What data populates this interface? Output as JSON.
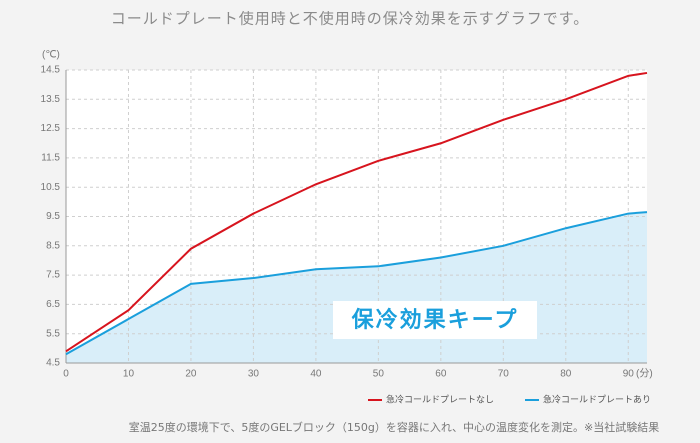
{
  "chart_data": {
    "type": "line",
    "title": "コールドプレート使用時と不使用時の保冷効果を示すグラフです。",
    "ylabel": "(℃)",
    "xlabel": "(分)",
    "x": [
      0,
      10,
      20,
      30,
      40,
      50,
      60,
      70,
      80,
      90,
      93
    ],
    "series": [
      {
        "name": "急冷コールドプレートなし",
        "color": "#d7141e",
        "values": [
          4.9,
          6.3,
          8.4,
          9.6,
          10.6,
          11.4,
          12.0,
          12.8,
          13.5,
          14.3,
          14.4
        ]
      },
      {
        "name": "急冷コールドプレートあり",
        "color": "#1a9fdc",
        "fill": "#d9eef9",
        "values": [
          4.8,
          6.0,
          7.2,
          7.4,
          7.7,
          7.8,
          8.1,
          8.5,
          9.1,
          9.6,
          9.65
        ]
      }
    ],
    "xlim": [
      0,
      93
    ],
    "xticks": [
      0,
      10,
      20,
      30,
      40,
      50,
      60,
      70,
      80,
      90
    ],
    "ylim": [
      4.5,
      14.5
    ],
    "yticks": [
      4.5,
      5.5,
      6.5,
      7.5,
      8.5,
      9.5,
      10.5,
      11.5,
      12.5,
      13.5,
      14.5
    ],
    "grid": true,
    "annotation": "保冷効果キープ",
    "footnote": "室温25度の環境下で、5度のGELブロック（150g）を容器に入れ、中心の温度変化を測定。※当社試験結果"
  }
}
